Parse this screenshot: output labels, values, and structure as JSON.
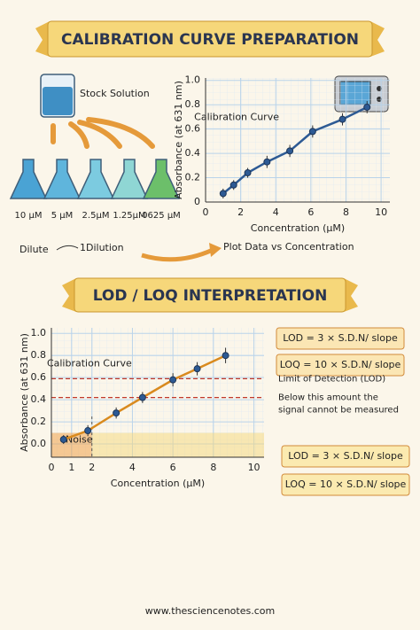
{
  "sections": [
    {
      "title": "CALIBRATION CURVE PREPARATION"
    },
    {
      "title": "LOD / LOQ INTERPRETATION"
    }
  ],
  "preparation": {
    "stock": "Stock Solution",
    "dilutions": [
      "10 μM",
      "5 μM",
      "2.5μM",
      "1.25μM",
      "0625 μM"
    ],
    "dilute": "Dilute",
    "dilution": "1Dilution",
    "plot": "Plot Data vs Concentration"
  },
  "formulas": [
    "LOD = 3 × S.D.N/ slope",
    "LOQ = 10 × S.D.N/ slope",
    "LOD = 3 × S.D.N/ slope",
    "LOQ = 10 × S.D.N/ slope"
  ],
  "footer": "www.thesciencenotes.com",
  "chart_data": [
    {
      "type": "line",
      "x_label": "Concentration (μM)",
      "y_label": "Absorbance (at 631 nm)",
      "annotation": "Calibration Curve",
      "x": [
        1,
        1.6,
        2.4,
        3.5,
        4.8,
        6.1,
        7.8,
        9.2
      ],
      "values": [
        0.07,
        0.14,
        0.24,
        0.33,
        0.42,
        0.58,
        0.68,
        0.78
      ],
      "errors": [
        0.04,
        0.04,
        0.04,
        0.05,
        0.05,
        0.05,
        0.05,
        0.05
      ],
      "color": "#2d5a94",
      "xlim": [
        0,
        10.5
      ],
      "ylim": [
        0,
        1.02
      ],
      "xticks": [
        0,
        2,
        4,
        6,
        8,
        10
      ],
      "yticks": [
        0,
        0.2,
        0.4,
        0.6,
        0.8,
        {
          "value": 1,
          "label": "1.0"
        }
      ],
      "grid": true
    },
    {
      "type": "line",
      "x_label": "Concentration (μM)",
      "y_label": "Absorbance (at 631 nm)",
      "annotation": "Calibration Curve",
      "x": [
        0.6,
        1.8,
        3.2,
        4.5,
        6,
        7.2,
        8.6
      ],
      "values": [
        0.04,
        0.12,
        0.28,
        0.42,
        0.58,
        0.68,
        0.8
      ],
      "errors": [
        0.04,
        0.05,
        0.05,
        0.05,
        0.06,
        0.06,
        0.07
      ],
      "color": "#d98a1e",
      "point_color": "#2d5a94",
      "xlim": [
        0,
        10.5
      ],
      "ylim": [
        -0.12,
        1.05
      ],
      "xticks": [
        0,
        1,
        2,
        4,
        6,
        8,
        10
      ],
      "yticks": [
        {
          "value": 0,
          "label": "0.0"
        },
        0.2,
        0.4,
        0.6,
        0.8,
        {
          "value": 1,
          "label": "1.0"
        }
      ],
      "grid": true,
      "reference_lines": [
        {
          "value": 0.59,
          "label": "Limit of Detection (LOD)"
        },
        {
          "value": 0.42
        }
      ],
      "note": [
        "Below this amount the",
        "signal cannot be measured"
      ],
      "noise_band": {
        "x": [
          0,
          2
        ],
        "y": [
          -0.12,
          0.1
        ],
        "label": "Noise"
      }
    }
  ]
}
